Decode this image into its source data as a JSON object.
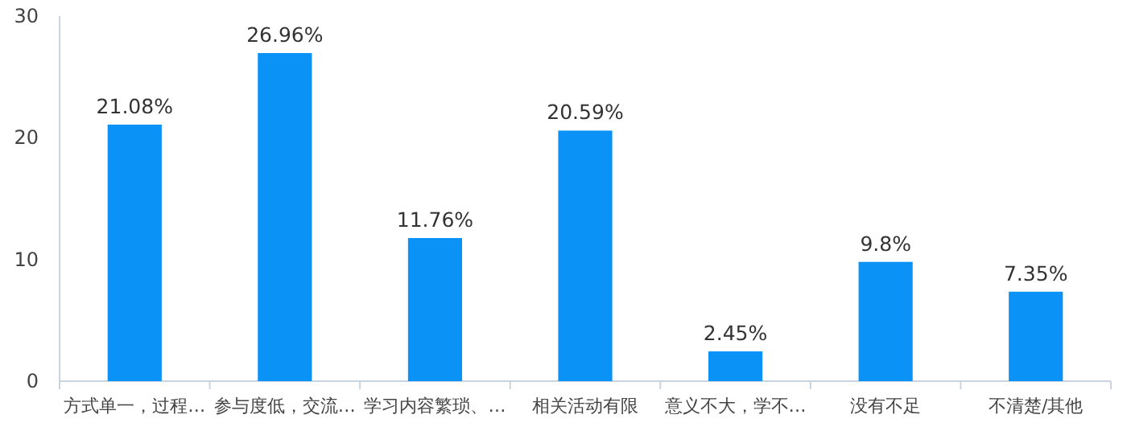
{
  "chart_data": {
    "type": "bar",
    "categories": [
      "方式单一，过程…",
      "参与度低，交流…",
      "学习内容繁琐、…",
      "相关活动有限",
      "意义不大，学不…",
      "没有不足",
      "不清楚/其他"
    ],
    "values": [
      21.08,
      26.96,
      11.76,
      20.59,
      2.45,
      9.8,
      7.35
    ],
    "value_labels": [
      "21.08%",
      "26.96%",
      "11.76%",
      "20.59%",
      "2.45%",
      "9.8%",
      "7.35%"
    ],
    "color": "#0a92f7",
    "ylim": [
      0,
      30
    ],
    "yticks": [
      0,
      10,
      20,
      30
    ],
    "grid": false
  }
}
